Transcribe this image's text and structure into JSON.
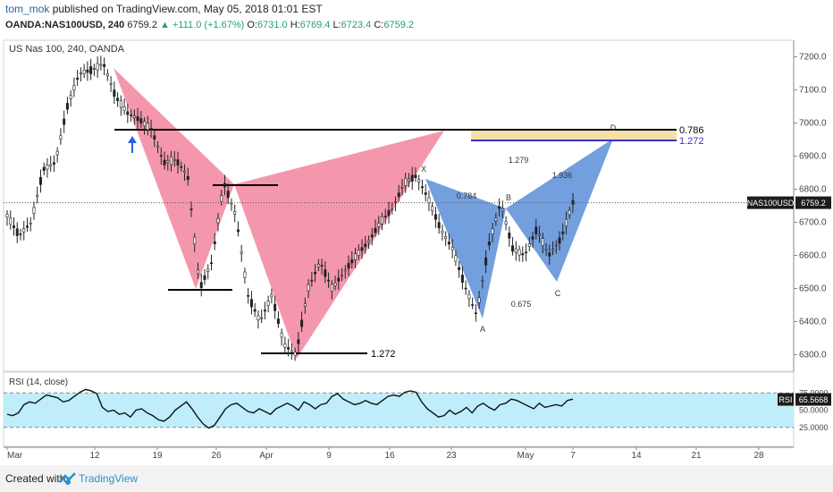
{
  "header": {
    "username": "tom_mok",
    "published_text": "published on TradingView.com, May 05, 2018 01:01 EST",
    "symbol": "OANDA:NAS100USD, 240",
    "last": "6759.2",
    "change": "▲ +111.0 (+1.67%)",
    "o_label": "O:",
    "o_value": "6731.0",
    "h_label": "H:",
    "h_value": "6769.4",
    "l_label": "L:",
    "l_value": "6723.4",
    "c_label": "C:",
    "c_value": "6759.2"
  },
  "footer": {
    "created_with": "Created with",
    "brand": "TradingView"
  },
  "chart_data": {
    "type": "candlestick",
    "title": "US Nas 100, 240, OANDA",
    "price_axis": {
      "min": 6250,
      "max": 7250,
      "ticks": [
        "7200.0",
        "7100.0",
        "7000.0",
        "6900.0",
        "6800.0",
        "6700.0",
        "6600.0",
        "6500.0",
        "6400.0",
        "6300.0"
      ]
    },
    "time_ticks": [
      "Mar",
      "12",
      "19",
      "26",
      "Apr",
      "9",
      "16",
      "23",
      "May",
      "7",
      "14",
      "21",
      "28"
    ],
    "last_price_label": "NAS100USD",
    "last_price": "6759.2",
    "price_series_path": [
      [
        "Mar",
        6720
      ],
      [
        "Mar",
        6660
      ],
      [
        "Mar",
        6700
      ],
      [
        "Mar",
        6860
      ],
      [
        "Mar",
        6880
      ],
      [
        "12",
        7050
      ],
      [
        "12",
        7150
      ],
      [
        "12",
        7160
      ],
      [
        "12",
        7180
      ],
      [
        "12",
        7080
      ],
      [
        "12",
        7030
      ],
      [
        "19",
        7010
      ],
      [
        "19",
        6980
      ],
      [
        "19",
        6880
      ],
      [
        "19",
        6890
      ],
      [
        "19",
        6840
      ],
      [
        "26",
        6500
      ],
      [
        "26",
        6580
      ],
      [
        "26",
        6820
      ],
      [
        "26",
        6720
      ],
      [
        "26",
        6480
      ],
      [
        "Apr",
        6400
      ],
      [
        "Apr",
        6480
      ],
      [
        "Apr",
        6330
      ],
      [
        "Apr",
        6300
      ],
      [
        "Apr",
        6500
      ],
      [
        "Apr",
        6580
      ],
      [
        "9",
        6500
      ],
      [
        "9",
        6550
      ],
      [
        "9",
        6600
      ],
      [
        "9",
        6640
      ],
      [
        "16",
        6700
      ],
      [
        "16",
        6740
      ],
      [
        "16",
        6820
      ],
      [
        "16",
        6840
      ],
      [
        "23",
        6770
      ],
      [
        "23",
        6680
      ],
      [
        "23",
        6620
      ],
      [
        "23",
        6510
      ],
      [
        "23",
        6420
      ],
      [
        "23",
        6630
      ],
      [
        "May",
        6760
      ],
      [
        "May",
        6620
      ],
      [
        "May",
        6600
      ],
      [
        "May",
        6680
      ],
      [
        "May",
        6600
      ],
      [
        "May",
        6650
      ],
      [
        "7",
        6760
      ]
    ],
    "patterns": [
      {
        "name": "bearish-bat-pink",
        "color": "#f06b8a",
        "points": [
          "X",
          "A",
          "B",
          "C",
          "D"
        ]
      },
      {
        "name": "bearish-bat-blue",
        "color": "#5b8ed8",
        "points": [
          "X",
          "A",
          "B",
          "C",
          "D"
        ],
        "labels": [
          "X",
          "A",
          "B",
          "C",
          "D"
        ],
        "ratios": [
          "0.784",
          "1.279",
          "0.675",
          "1.936"
        ]
      }
    ],
    "levels": [
      {
        "label": "0.786",
        "price": 6995,
        "color": "#000000"
      },
      {
        "label": "1.272",
        "price": 6965,
        "color": "#3b2fc9"
      },
      {
        "label": "1.272",
        "price": 6305,
        "color": "#000000"
      }
    ],
    "rsi": {
      "title": "RSI (14, close)",
      "badge_label": "RSI",
      "badge_value": "65.5668",
      "ticks": [
        "75.0000",
        "50.0000",
        "25.0000"
      ],
      "range": [
        0,
        100
      ],
      "upper": 75,
      "lower": 25,
      "values": [
        44,
        42,
        46,
        58,
        62,
        60,
        66,
        72,
        70,
        68,
        62,
        64,
        70,
        76,
        80,
        78,
        74,
        54,
        48,
        50,
        44,
        46,
        40,
        50,
        52,
        46,
        42,
        36,
        34,
        40,
        50,
        56,
        62,
        52,
        40,
        30,
        24,
        28,
        40,
        52,
        58,
        60,
        54,
        48,
        46,
        52,
        48,
        44,
        52,
        56,
        60,
        56,
        50,
        62,
        58,
        52,
        58,
        60,
        70,
        74,
        66,
        62,
        58,
        60,
        64,
        60,
        58,
        64,
        70,
        72,
        70,
        76,
        78,
        76,
        62,
        52,
        46,
        40,
        42,
        50,
        44,
        48,
        54,
        46,
        56,
        60,
        54,
        50,
        58,
        60,
        66,
        64,
        60,
        56,
        52,
        60,
        54,
        56,
        58,
        56,
        64,
        66
      ]
    }
  }
}
